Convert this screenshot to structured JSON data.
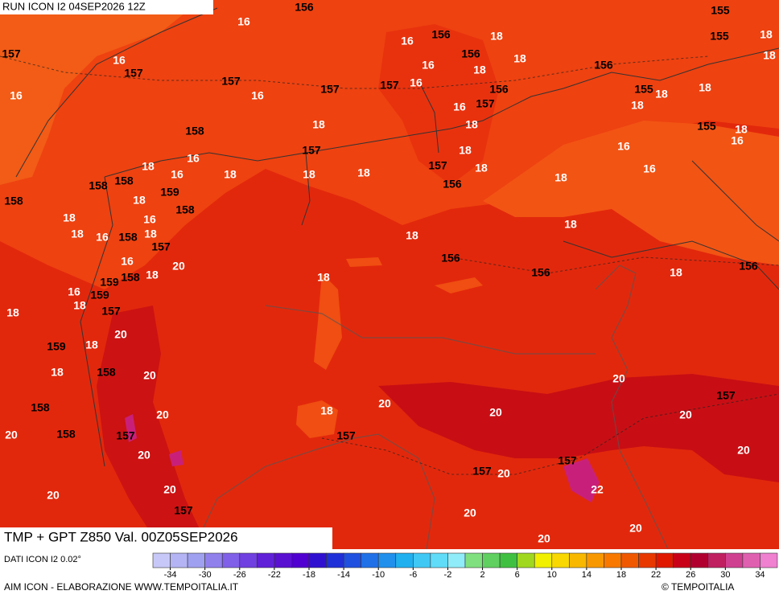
{
  "header": {
    "title": "RUN ICON I2 04SEP2026 12Z"
  },
  "map": {
    "labels": [
      156,
      155,
      16,
      18,
      155,
      16,
      156,
      18,
      157,
      16,
      156,
      18,
      18,
      157,
      16,
      18,
      156,
      157,
      157,
      16,
      156,
      155,
      18,
      18,
      16,
      157,
      16,
      16,
      157,
      18,
      18,
      18,
      155,
      18,
      158,
      16,
      16,
      18,
      157,
      16,
      18,
      16,
      18,
      157,
      18,
      18,
      16,
      18,
      18,
      158,
      158,
      156,
      159,
      18,
      158,
      158,
      18,
      16,
      18,
      18,
      16,
      158,
      18,
      18,
      157,
      16,
      20,
      156,
      156,
      156,
      18,
      18,
      159,
      158,
      18,
      16,
      18,
      159,
      157,
      18,
      20,
      159,
      18,
      18,
      158,
      20,
      20,
      157,
      20,
      158,
      18,
      20,
      20,
      20,
      20,
      158,
      157,
      157,
      20,
      20,
      157,
      157,
      20,
      20,
      22,
      20,
      157,
      20,
      20,
      20
    ]
  },
  "footer": {
    "product": "TMP + GPT Z850 Val. 00Z05SEP2026",
    "source": "DATI ICON I2 0.02°",
    "credit": "AIM ICON - ELABORAZIONE WWW.TEMPOITALIA.IT",
    "copyright": "© TEMPOITALIA"
  },
  "colorbar": {
    "range": [
      -36,
      36
    ],
    "ticks": [
      -34,
      -30,
      -26,
      -22,
      -18,
      -14,
      -10,
      -6,
      -2,
      2,
      6,
      10,
      14,
      18,
      22,
      26,
      30,
      34
    ],
    "colors": [
      "#c8c8f8",
      "#b4b4f4",
      "#a0a0f0",
      "#9080ec",
      "#8060e8",
      "#7040e0",
      "#6020d8",
      "#5a10d0",
      "#5000d0",
      "#3010d0",
      "#2030d8",
      "#2050e0",
      "#2070e8",
      "#2090ec",
      "#20b0f0",
      "#40c8f4",
      "#60dcf8",
      "#90ecf8",
      "#80e080",
      "#60d060",
      "#40c040",
      "#a0d820",
      "#f0f000",
      "#f8d800",
      "#f8b800",
      "#f89800",
      "#f87800",
      "#f05800",
      "#e83800",
      "#e01800",
      "#c80018",
      "#b00030",
      "#c02060",
      "#d04090",
      "#e060b0",
      "#f080d0"
    ]
  }
}
